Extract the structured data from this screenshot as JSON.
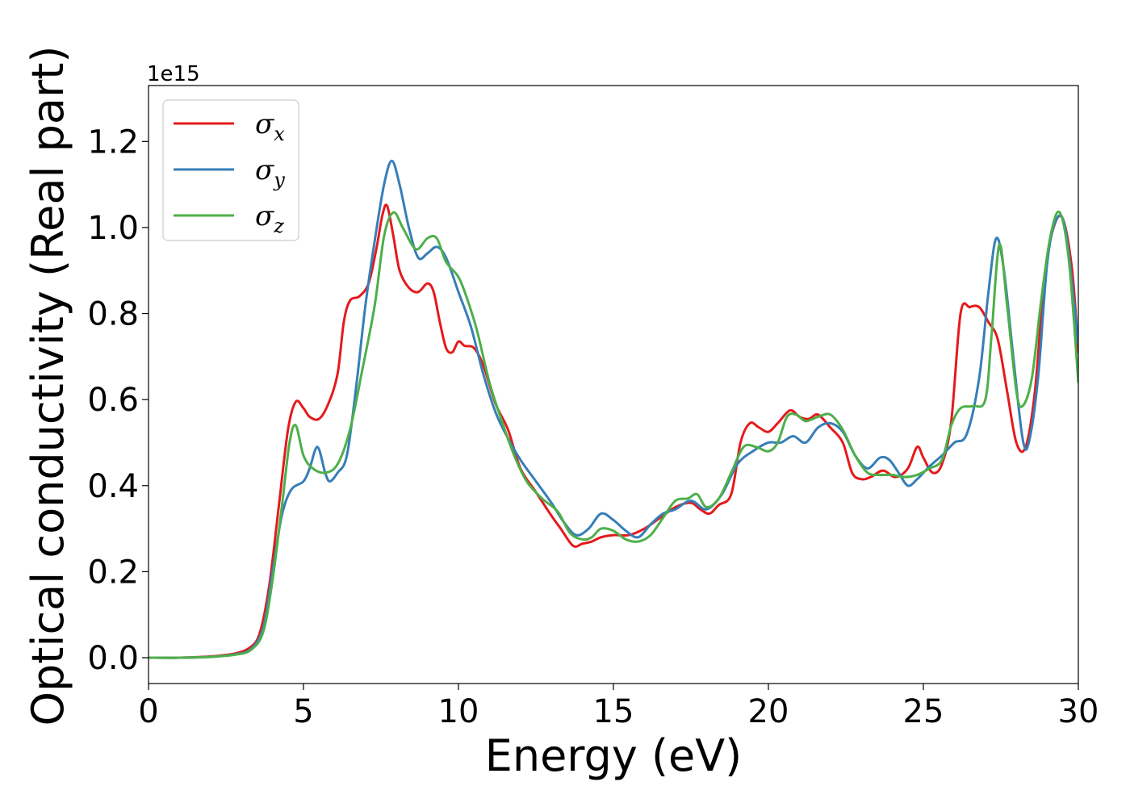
{
  "chart_data": {
    "type": "line",
    "xlabel": "Energy (eV)",
    "ylabel": "Optical conductivity (Real part)",
    "y_offset_label": "1e15",
    "xlim": [
      0,
      30
    ],
    "ylim": [
      -0.06,
      1.33
    ],
    "x_ticks": [
      0,
      5,
      10,
      15,
      20,
      25,
      30
    ],
    "x_tick_labels": [
      "0",
      "5",
      "10",
      "15",
      "20",
      "25",
      "30"
    ],
    "y_ticks": [
      0.0,
      0.2,
      0.4,
      0.6,
      0.8,
      1.0,
      1.2
    ],
    "y_tick_labels": [
      "0.0",
      "0.2",
      "0.4",
      "0.6",
      "0.8",
      "1.0",
      "1.2"
    ],
    "grid": false,
    "legend_position": "top-left",
    "series": [
      {
        "name": "σ",
        "subscript": "x",
        "color": "#e41a1c",
        "points": [
          [
            0,
            0
          ],
          [
            1,
            0
          ],
          [
            2,
            0.003
          ],
          [
            2.8,
            0.01
          ],
          [
            3.3,
            0.025
          ],
          [
            3.6,
            0.06
          ],
          [
            3.9,
            0.17
          ],
          [
            4.2,
            0.35
          ],
          [
            4.5,
            0.53
          ],
          [
            4.75,
            0.595
          ],
          [
            5,
            0.58
          ],
          [
            5.2,
            0.56
          ],
          [
            5.5,
            0.555
          ],
          [
            5.8,
            0.59
          ],
          [
            6.1,
            0.66
          ],
          [
            6.3,
            0.78
          ],
          [
            6.5,
            0.83
          ],
          [
            6.8,
            0.84
          ],
          [
            7.1,
            0.87
          ],
          [
            7.35,
            0.95
          ],
          [
            7.55,
            1.03
          ],
          [
            7.7,
            1.05
          ],
          [
            7.9,
            0.98
          ],
          [
            8.1,
            0.9
          ],
          [
            8.4,
            0.86
          ],
          [
            8.7,
            0.85
          ],
          [
            9,
            0.87
          ],
          [
            9.2,
            0.85
          ],
          [
            9.4,
            0.78
          ],
          [
            9.6,
            0.72
          ],
          [
            9.8,
            0.71
          ],
          [
            10,
            0.735
          ],
          [
            10.2,
            0.725
          ],
          [
            10.5,
            0.72
          ],
          [
            10.8,
            0.68
          ],
          [
            11.2,
            0.59
          ],
          [
            11.6,
            0.53
          ],
          [
            12,
            0.44
          ],
          [
            12.5,
            0.385
          ],
          [
            13,
            0.33
          ],
          [
            13.3,
            0.3
          ],
          [
            13.7,
            0.26
          ],
          [
            14,
            0.265
          ],
          [
            14.3,
            0.27
          ],
          [
            14.6,
            0.28
          ],
          [
            15,
            0.285
          ],
          [
            15.5,
            0.285
          ],
          [
            16,
            0.3
          ],
          [
            16.5,
            0.325
          ],
          [
            17,
            0.35
          ],
          [
            17.5,
            0.36
          ],
          [
            17.8,
            0.345
          ],
          [
            18.1,
            0.335
          ],
          [
            18.4,
            0.355
          ],
          [
            18.8,
            0.38
          ],
          [
            19.1,
            0.5
          ],
          [
            19.4,
            0.545
          ],
          [
            19.7,
            0.535
          ],
          [
            20,
            0.525
          ],
          [
            20.3,
            0.545
          ],
          [
            20.7,
            0.575
          ],
          [
            21,
            0.56
          ],
          [
            21.3,
            0.555
          ],
          [
            21.6,
            0.565
          ],
          [
            22,
            0.535
          ],
          [
            22.4,
            0.5
          ],
          [
            22.7,
            0.43
          ],
          [
            23,
            0.415
          ],
          [
            23.3,
            0.42
          ],
          [
            23.7,
            0.435
          ],
          [
            24.1,
            0.42
          ],
          [
            24.5,
            0.44
          ],
          [
            24.8,
            0.49
          ],
          [
            25,
            0.465
          ],
          [
            25.3,
            0.43
          ],
          [
            25.6,
            0.45
          ],
          [
            25.9,
            0.55
          ],
          [
            26.2,
            0.8
          ],
          [
            26.5,
            0.815
          ],
          [
            26.8,
            0.815
          ],
          [
            27.1,
            0.78
          ],
          [
            27.4,
            0.74
          ],
          [
            27.7,
            0.62
          ],
          [
            28,
            0.5
          ],
          [
            28.3,
            0.49
          ],
          [
            28.6,
            0.62
          ],
          [
            28.9,
            0.88
          ],
          [
            29.2,
            1.0
          ],
          [
            29.5,
            1.02
          ],
          [
            29.8,
            0.9
          ],
          [
            30,
            0.71
          ]
        ]
      },
      {
        "name": "σ",
        "subscript": "y",
        "color": "#377eb8",
        "points": [
          [
            0,
            0
          ],
          [
            1,
            0
          ],
          [
            2,
            0.002
          ],
          [
            2.8,
            0.008
          ],
          [
            3.3,
            0.02
          ],
          [
            3.7,
            0.07
          ],
          [
            4,
            0.2
          ],
          [
            4.3,
            0.33
          ],
          [
            4.6,
            0.39
          ],
          [
            5,
            0.41
          ],
          [
            5.2,
            0.44
          ],
          [
            5.45,
            0.49
          ],
          [
            5.7,
            0.43
          ],
          [
            5.85,
            0.41
          ],
          [
            6.1,
            0.43
          ],
          [
            6.4,
            0.47
          ],
          [
            6.7,
            0.63
          ],
          [
            7,
            0.82
          ],
          [
            7.3,
            0.97
          ],
          [
            7.6,
            1.1
          ],
          [
            7.85,
            1.155
          ],
          [
            8.1,
            1.1
          ],
          [
            8.4,
            1.0
          ],
          [
            8.7,
            0.93
          ],
          [
            9,
            0.94
          ],
          [
            9.3,
            0.955
          ],
          [
            9.6,
            0.93
          ],
          [
            10,
            0.85
          ],
          [
            10.4,
            0.77
          ],
          [
            10.8,
            0.66
          ],
          [
            11.2,
            0.57
          ],
          [
            11.6,
            0.51
          ],
          [
            12,
            0.46
          ],
          [
            12.5,
            0.41
          ],
          [
            13,
            0.36
          ],
          [
            13.4,
            0.315
          ],
          [
            13.8,
            0.285
          ],
          [
            14.2,
            0.3
          ],
          [
            14.6,
            0.335
          ],
          [
            15,
            0.32
          ],
          [
            15.4,
            0.295
          ],
          [
            15.8,
            0.28
          ],
          [
            16.2,
            0.31
          ],
          [
            16.6,
            0.335
          ],
          [
            17,
            0.345
          ],
          [
            17.5,
            0.365
          ],
          [
            18,
            0.345
          ],
          [
            18.5,
            0.38
          ],
          [
            19,
            0.45
          ],
          [
            19.5,
            0.48
          ],
          [
            20,
            0.5
          ],
          [
            20.4,
            0.5
          ],
          [
            20.8,
            0.515
          ],
          [
            21.2,
            0.5
          ],
          [
            21.6,
            0.535
          ],
          [
            22,
            0.545
          ],
          [
            22.4,
            0.525
          ],
          [
            22.8,
            0.47
          ],
          [
            23.2,
            0.44
          ],
          [
            23.6,
            0.465
          ],
          [
            23.9,
            0.46
          ],
          [
            24.2,
            0.43
          ],
          [
            24.5,
            0.4
          ],
          [
            24.8,
            0.415
          ],
          [
            25.2,
            0.445
          ],
          [
            25.6,
            0.47
          ],
          [
            26,
            0.5
          ],
          [
            26.4,
            0.52
          ],
          [
            26.8,
            0.65
          ],
          [
            27.1,
            0.85
          ],
          [
            27.35,
            0.975
          ],
          [
            27.6,
            0.9
          ],
          [
            27.9,
            0.7
          ],
          [
            28.2,
            0.51
          ],
          [
            28.4,
            0.5
          ],
          [
            28.7,
            0.65
          ],
          [
            29,
            0.92
          ],
          [
            29.3,
            1.02
          ],
          [
            29.6,
            0.99
          ],
          [
            30,
            0.73
          ]
        ]
      },
      {
        "name": "σ",
        "subscript": "z",
        "color": "#4daf4a",
        "points": [
          [
            0,
            0
          ],
          [
            1,
            0
          ],
          [
            2,
            0.002
          ],
          [
            2.8,
            0.007
          ],
          [
            3.3,
            0.018
          ],
          [
            3.7,
            0.06
          ],
          [
            4,
            0.18
          ],
          [
            4.3,
            0.35
          ],
          [
            4.55,
            0.5
          ],
          [
            4.75,
            0.54
          ],
          [
            5,
            0.47
          ],
          [
            5.3,
            0.44
          ],
          [
            5.7,
            0.43
          ],
          [
            6.1,
            0.45
          ],
          [
            6.5,
            0.53
          ],
          [
            6.9,
            0.67
          ],
          [
            7.3,
            0.82
          ],
          [
            7.6,
            0.98
          ],
          [
            7.9,
            1.035
          ],
          [
            8.2,
            1.0
          ],
          [
            8.5,
            0.96
          ],
          [
            8.7,
            0.95
          ],
          [
            9,
            0.975
          ],
          [
            9.3,
            0.975
          ],
          [
            9.6,
            0.92
          ],
          [
            10,
            0.885
          ],
          [
            10.3,
            0.83
          ],
          [
            10.6,
            0.76
          ],
          [
            11,
            0.64
          ],
          [
            11.4,
            0.55
          ],
          [
            11.8,
            0.47
          ],
          [
            12.2,
            0.41
          ],
          [
            12.7,
            0.37
          ],
          [
            13.2,
            0.34
          ],
          [
            13.6,
            0.29
          ],
          [
            14,
            0.275
          ],
          [
            14.3,
            0.28
          ],
          [
            14.6,
            0.3
          ],
          [
            15,
            0.295
          ],
          [
            15.4,
            0.275
          ],
          [
            15.8,
            0.27
          ],
          [
            16.2,
            0.285
          ],
          [
            16.6,
            0.325
          ],
          [
            17,
            0.365
          ],
          [
            17.4,
            0.37
          ],
          [
            17.7,
            0.38
          ],
          [
            18,
            0.35
          ],
          [
            18.4,
            0.37
          ],
          [
            18.8,
            0.43
          ],
          [
            19.2,
            0.49
          ],
          [
            19.6,
            0.49
          ],
          [
            20,
            0.48
          ],
          [
            20.3,
            0.5
          ],
          [
            20.6,
            0.56
          ],
          [
            20.9,
            0.565
          ],
          [
            21.2,
            0.55
          ],
          [
            21.6,
            0.56
          ],
          [
            22,
            0.565
          ],
          [
            22.4,
            0.53
          ],
          [
            22.8,
            0.47
          ],
          [
            23.2,
            0.43
          ],
          [
            23.6,
            0.425
          ],
          [
            24,
            0.425
          ],
          [
            24.4,
            0.42
          ],
          [
            24.8,
            0.425
          ],
          [
            25.2,
            0.44
          ],
          [
            25.6,
            0.46
          ],
          [
            25.9,
            0.54
          ],
          [
            26.2,
            0.58
          ],
          [
            26.6,
            0.585
          ],
          [
            27,
            0.6
          ],
          [
            27.2,
            0.75
          ],
          [
            27.45,
            0.96
          ],
          [
            27.7,
            0.82
          ],
          [
            28,
            0.62
          ],
          [
            28.2,
            0.585
          ],
          [
            28.5,
            0.65
          ],
          [
            28.8,
            0.83
          ],
          [
            29.1,
            0.98
          ],
          [
            29.4,
            1.035
          ],
          [
            29.7,
            0.92
          ],
          [
            30,
            0.64
          ]
        ]
      }
    ]
  }
}
